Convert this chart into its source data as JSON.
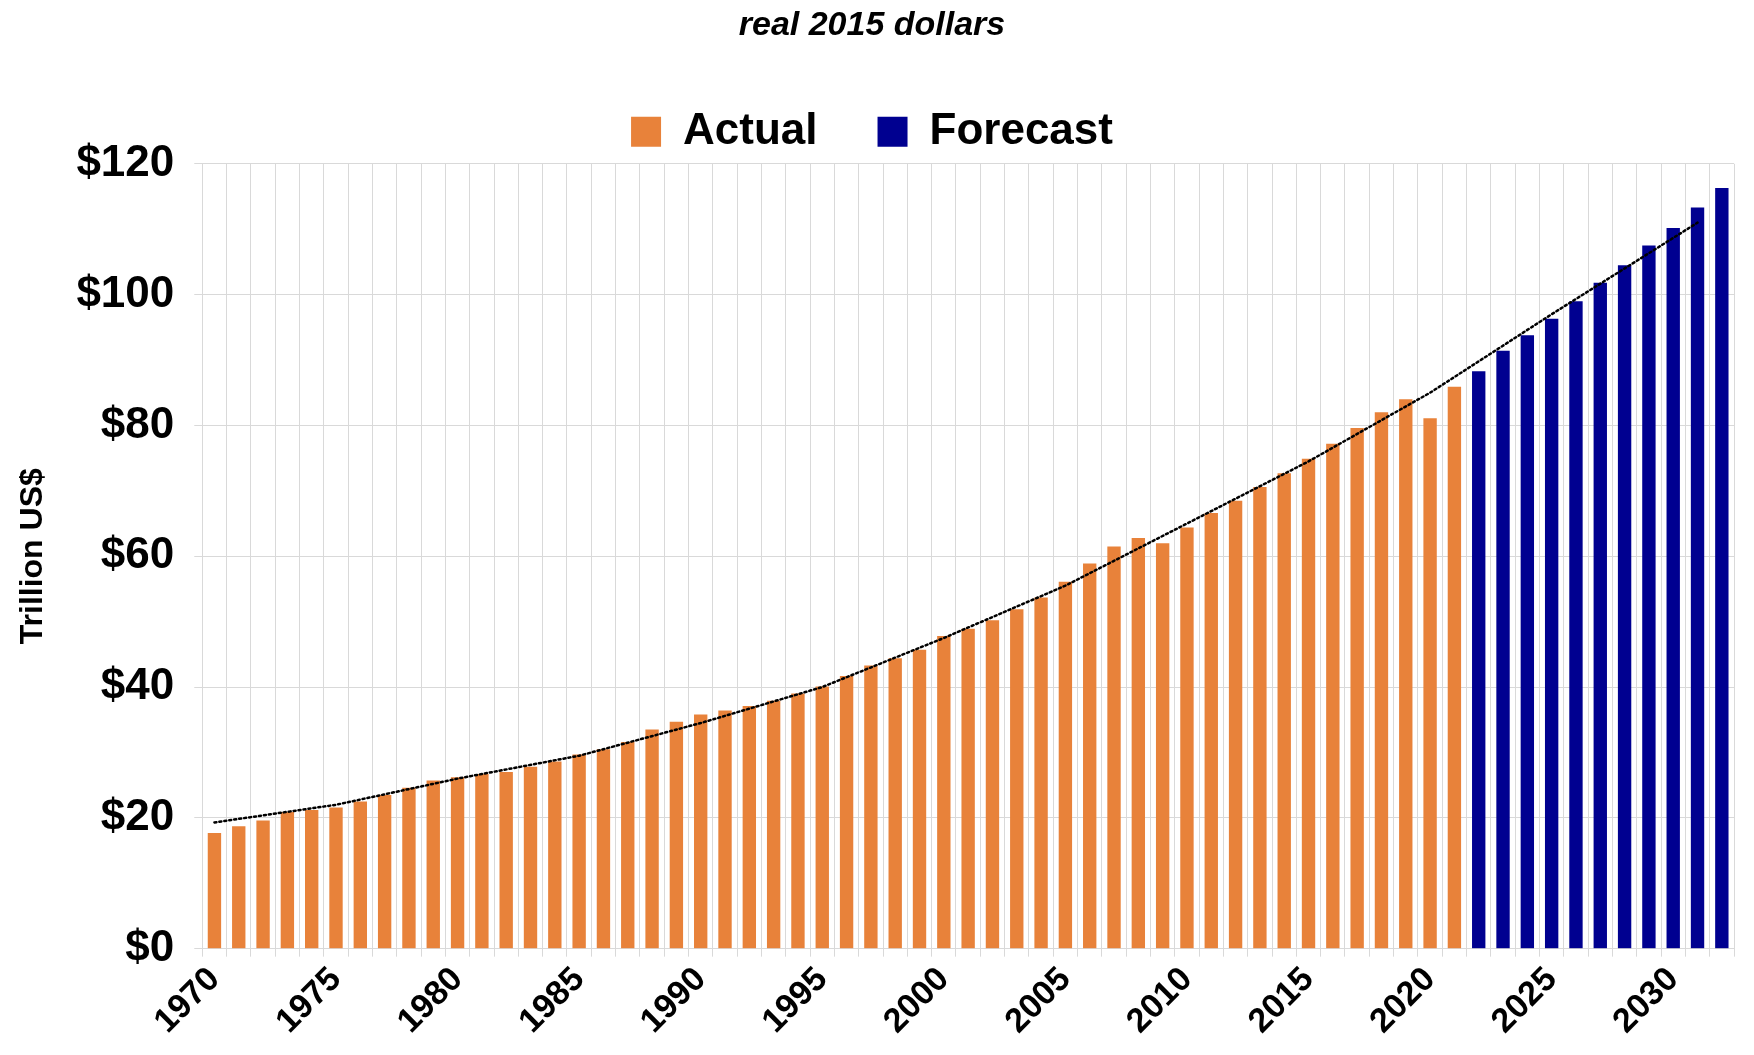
{
  "chart_data": {
    "type": "bar",
    "title": "real 2015 dollars",
    "ylabel": "Trillion US$",
    "categories": [
      "1970",
      null,
      null,
      null,
      null,
      "1975",
      null,
      null,
      null,
      null,
      "1980",
      null,
      null,
      null,
      null,
      "1985",
      null,
      null,
      null,
      null,
      "1990",
      null,
      null,
      null,
      null,
      "1995",
      null,
      null,
      null,
      null,
      "2000",
      null,
      null,
      null,
      null,
      "2005",
      null,
      null,
      null,
      null,
      "2010",
      null,
      null,
      null,
      null,
      "2015",
      null,
      null,
      null,
      null,
      "2020",
      null,
      null,
      null,
      null,
      "2025",
      null,
      null,
      null,
      null,
      "2030",
      null,
      null
    ],
    "series": [
      {
        "name": "Actual",
        "color": "#e8823a",
        "values": [
          17.7,
          18.7,
          19.6,
          20.9,
          21.2,
          21.6,
          22.5,
          23.5,
          24.6,
          25.7,
          26.2,
          26.7,
          27.0,
          27.8,
          28.6,
          29.7,
          30.5,
          31.6,
          33.5,
          34.7,
          35.8,
          36.4,
          37.1,
          37.9,
          39.0,
          40.1,
          41.7,
          43.3,
          44.4,
          45.7,
          47.8,
          48.9,
          50.2,
          51.9,
          53.7,
          56.1,
          58.9,
          61.5,
          62.8,
          62.0,
          64.4,
          66.6,
          68.5,
          70.6,
          72.7,
          74.9,
          77.2,
          79.6,
          82.0,
          84.0,
          81.1,
          85.9,
          null,
          null,
          null,
          null,
          null,
          null,
          null,
          null,
          null,
          null,
          null
        ]
      },
      {
        "name": "Forecast",
        "color": "#000090",
        "values": [
          null,
          null,
          null,
          null,
          null,
          null,
          null,
          null,
          null,
          null,
          null,
          null,
          null,
          null,
          null,
          null,
          null,
          null,
          null,
          null,
          null,
          null,
          null,
          null,
          null,
          null,
          null,
          null,
          null,
          null,
          null,
          null,
          null,
          null,
          null,
          null,
          null,
          null,
          null,
          null,
          null,
          null,
          null,
          null,
          null,
          null,
          null,
          null,
          null,
          null,
          null,
          null,
          88.3,
          91.4,
          93.8,
          96.3,
          99.0,
          101.8,
          104.5,
          107.5,
          110.2,
          113.3,
          116.3
        ]
      },
      {
        "type": "line",
        "color": "#000000",
        "line_style": "dotted",
        "values": [
          19.3,
          null,
          null,
          null,
          null,
          22,
          null,
          null,
          null,
          null,
          26,
          null,
          null,
          null,
          null,
          29.5,
          null,
          null,
          null,
          null,
          34.5,
          null,
          null,
          null,
          null,
          40,
          null,
          null,
          null,
          null,
          47.5,
          null,
          null,
          null,
          null,
          55.5,
          null,
          null,
          null,
          null,
          65,
          null,
          null,
          null,
          null,
          74.5,
          null,
          null,
          null,
          null,
          85,
          null,
          null,
          null,
          null,
          97,
          null,
          null,
          null,
          null,
          null,
          111,
          null
        ]
      }
    ],
    "ylim": [
      0,
      120
    ],
    "yticks": [
      {
        "value": 0,
        "label": "$0"
      },
      {
        "value": 20,
        "label": "$20"
      },
      {
        "value": 40,
        "label": "$40"
      },
      {
        "value": 60,
        "label": "$60"
      },
      {
        "value": 80,
        "label": "$80"
      },
      {
        "value": 100,
        "label": "$100"
      },
      {
        "value": 120,
        "label": "$120"
      }
    ],
    "grid": true,
    "legend": "top",
    "marker": "none"
  }
}
